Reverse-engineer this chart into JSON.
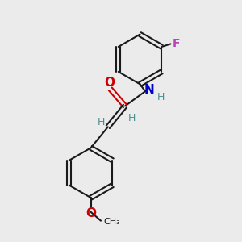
{
  "bg_color": "#ebebeb",
  "bond_color": "#1a1a1a",
  "O_color": "#cc0000",
  "N_color": "#0000cc",
  "F_color": "#bb44bb",
  "H_color": "#4a9090",
  "figsize": [
    3.0,
    3.0
  ],
  "dpi": 100,
  "xlim": [
    0,
    10
  ],
  "ylim": [
    0,
    10
  ]
}
